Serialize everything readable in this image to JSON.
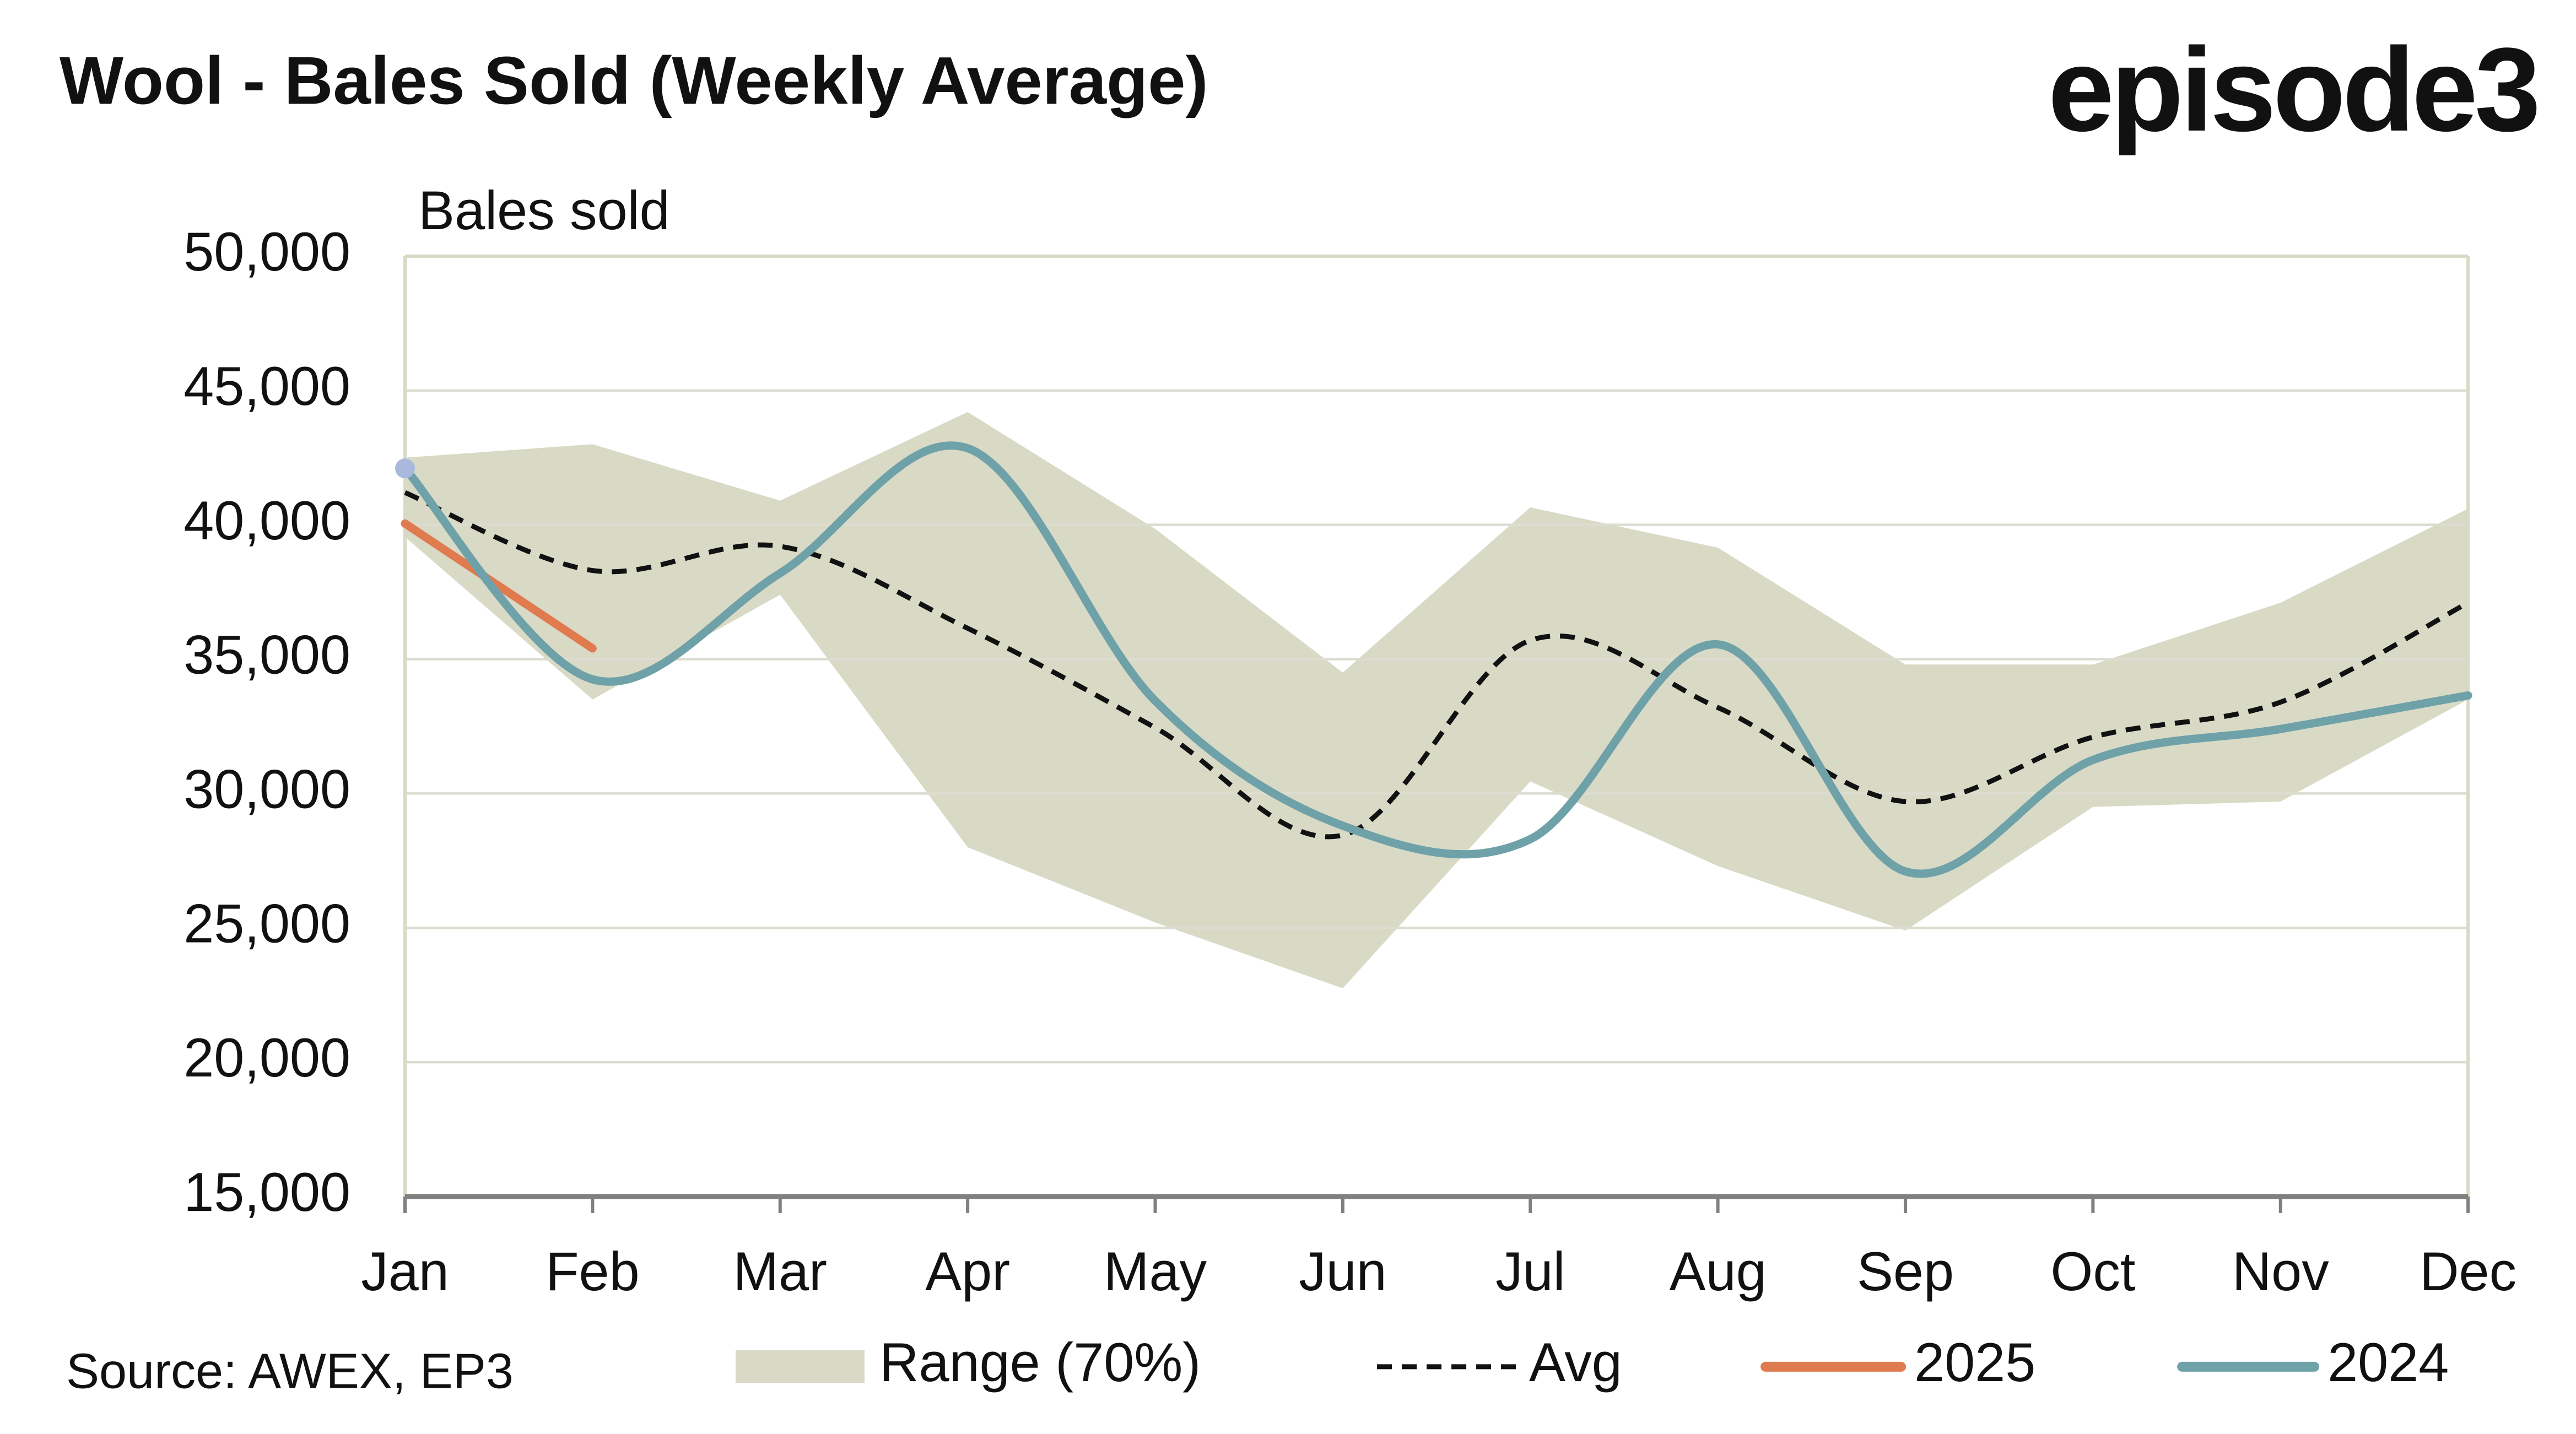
{
  "chart_data": {
    "type": "line",
    "title": "Wool - Bales Sold (Weekly Average)",
    "logo": "episode3",
    "ylabel": "Bales sold",
    "source": "Source: AWEX, EP3",
    "categories": [
      "Jan",
      "Feb",
      "Mar",
      "Apr",
      "May",
      "Jun",
      "Jul",
      "Aug",
      "Sep",
      "Oct",
      "Nov",
      "Dec"
    ],
    "ylim": [
      15000,
      50000
    ],
    "yticks": [
      {
        "value": 15000,
        "label": "15,000"
      },
      {
        "value": 20000,
        "label": "20,000"
      },
      {
        "value": 25000,
        "label": "25,000"
      },
      {
        "value": 30000,
        "label": "30,000"
      },
      {
        "value": 35000,
        "label": "35,000"
      },
      {
        "value": 40000,
        "label": "40,000"
      },
      {
        "value": 45000,
        "label": "45,000"
      },
      {
        "value": 50000,
        "label": "50,000"
      }
    ],
    "grid": true,
    "range": {
      "name": "Range (70%)",
      "color": "#d9dac6",
      "high": [
        42500,
        43000,
        40900,
        44200,
        39850,
        34500,
        40650,
        39150,
        34800,
        34800,
        37100,
        40600
      ],
      "low": [
        39550,
        33500,
        37400,
        28000,
        25200,
        22750,
        30450,
        27300,
        24900,
        29500,
        29700,
        33500
      ]
    },
    "series": [
      {
        "name": "Avg",
        "color": "#111111",
        "dashed": true,
        "values": [
          41200,
          38300,
          39200,
          36150,
          32450,
          28450,
          35700,
          33200,
          29700,
          32100,
          33400,
          37100
        ]
      },
      {
        "name": "2025",
        "color": "#e07b50",
        "values": [
          40050,
          35400,
          null,
          null,
          null,
          null,
          null,
          null,
          null,
          null,
          null,
          null
        ]
      },
      {
        "name": "2024",
        "color": "#6fa1a9",
        "values": [
          42100,
          34250,
          38200,
          42850,
          33450,
          28800,
          28300,
          35550,
          27100,
          31250,
          32400,
          33650
        ]
      }
    ]
  }
}
